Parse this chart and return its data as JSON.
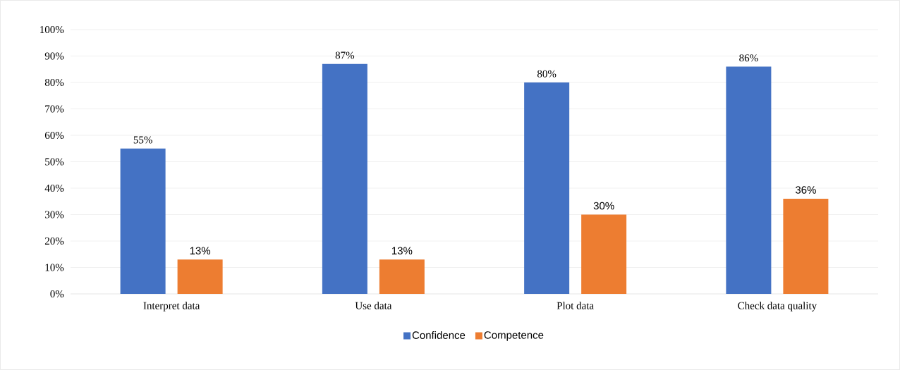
{
  "chart_data": {
    "type": "bar",
    "categories": [
      "Interpret data",
      "Use data",
      "Plot data",
      "Check data quality"
    ],
    "series": [
      {
        "name": "Confidence",
        "color": "#4472c4",
        "values": [
          55,
          87,
          80,
          86
        ],
        "value_labels": [
          "55%",
          "87%",
          "80%",
          "86%"
        ]
      },
      {
        "name": "Competence",
        "color": "#ed7d31",
        "values": [
          13,
          13,
          30,
          36
        ],
        "value_labels": [
          "13%",
          "13%",
          "30%",
          "36%"
        ]
      }
    ],
    "ylim": [
      0,
      100
    ],
    "yticks": [
      {
        "value": 0,
        "label": "0%"
      },
      {
        "value": 10,
        "label": "10%"
      },
      {
        "value": 20,
        "label": "20%"
      },
      {
        "value": 30,
        "label": "30%"
      },
      {
        "value": 40,
        "label": "40%"
      },
      {
        "value": 50,
        "label": "50%"
      },
      {
        "value": 60,
        "label": "60%"
      },
      {
        "value": 70,
        "label": "70%"
      },
      {
        "value": 80,
        "label": "80%"
      },
      {
        "value": 90,
        "label": "90%"
      },
      {
        "value": 100,
        "label": "100%"
      }
    ],
    "grid": "y",
    "legend": "bottom"
  }
}
